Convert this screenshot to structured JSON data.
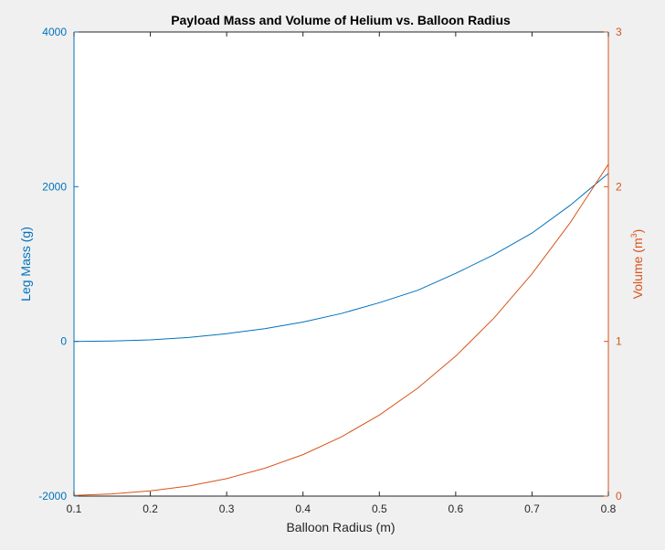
{
  "chart_data": {
    "type": "line",
    "title": "Payload Mass and Volume of Helium vs. Balloon Radius",
    "xlabel": "Balloon Radius (m)",
    "xlim": [
      0.1,
      0.8
    ],
    "xticks": [
      0.1,
      0.2,
      0.3,
      0.4,
      0.5,
      0.6,
      0.7,
      0.8
    ],
    "xtick_labels": [
      "0.1",
      "0.2",
      "0.3",
      "0.4",
      "0.5",
      "0.6",
      "0.7",
      "0.8"
    ],
    "y_left": {
      "label": "Leg Mass (g)",
      "lim": [
        -2000,
        4000
      ],
      "ticks": [
        -2000,
        0,
        2000,
        4000
      ],
      "tick_labels": [
        "-2000",
        "0",
        "2000",
        "4000"
      ],
      "color": "#0072BD"
    },
    "y_right": {
      "label_main": "Volume (m",
      "label_sup": "3",
      "label_end": ")",
      "lim": [
        0,
        3
      ],
      "ticks": [
        0,
        1,
        2,
        3
      ],
      "tick_labels": [
        "0",
        "1",
        "2",
        "3"
      ],
      "color": "#D95319"
    },
    "series": [
      {
        "axis": "left",
        "color": "#0072BD",
        "x": [
          0.1,
          0.15,
          0.2,
          0.25,
          0.3,
          0.35,
          0.4,
          0.45,
          0.5,
          0.55,
          0.6,
          0.65,
          0.7,
          0.75,
          0.8
        ],
        "y": [
          0,
          5,
          20,
          50,
          100,
          165,
          250,
          360,
          500,
          660,
          880,
          1120,
          1400,
          1760,
          2170
        ]
      },
      {
        "axis": "right",
        "color": "#D95319",
        "x": [
          0.1,
          0.15,
          0.2,
          0.25,
          0.3,
          0.35,
          0.4,
          0.45,
          0.5,
          0.55,
          0.6,
          0.65,
          0.7,
          0.75,
          0.8
        ],
        "y": [
          0.004,
          0.014,
          0.034,
          0.065,
          0.113,
          0.18,
          0.268,
          0.382,
          0.524,
          0.697,
          0.905,
          1.15,
          1.437,
          1.767,
          2.145
        ]
      }
    ],
    "grid": false,
    "legend": "none"
  }
}
